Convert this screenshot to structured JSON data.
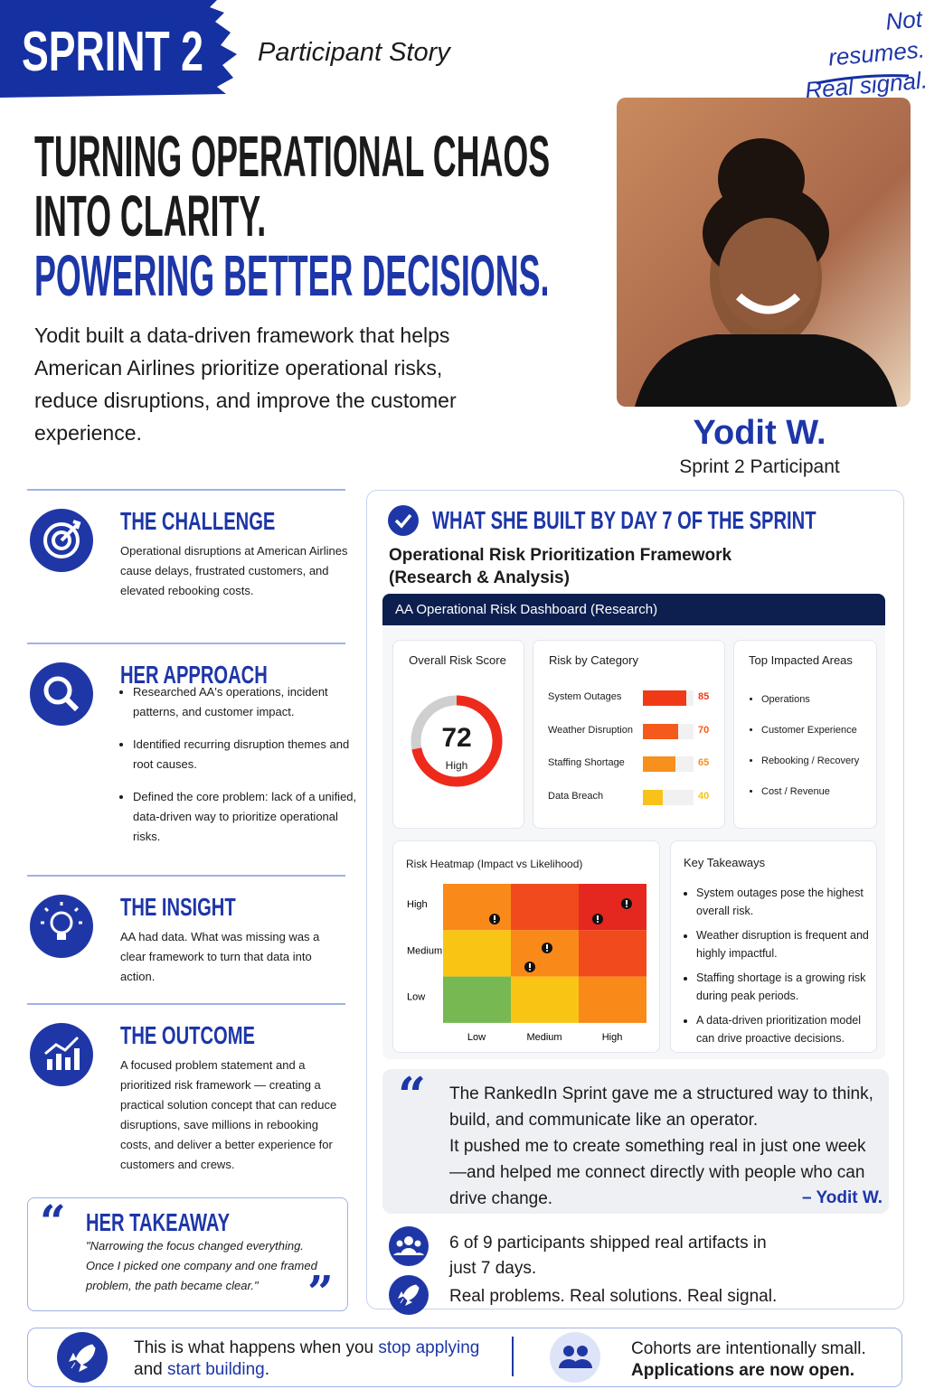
{
  "header": {
    "badge": "SPRINT 2",
    "subtitle": "Participant Story",
    "tagline": [
      "Not resumes.",
      "Real signal."
    ]
  },
  "hero": {
    "headline": [
      "TURNING OPERATIONAL CHAOS",
      "INTO CLARITY."
    ],
    "headline_accent": "POWERING BETTER DECISIONS.",
    "summary": "Yodit built a data-driven framework that helps American Airlines prioritize operational risks, reduce disruptions, and improve the customer experience.",
    "name": "Yodit W.",
    "role": "Sprint 2 Participant"
  },
  "sections": [
    {
      "title": "THE CHALLENGE",
      "body": "Operational disruptions at American Airlines cause delays, frustrated customers, and elevated rebooking costs."
    },
    {
      "title": "HER APPROACH",
      "bullets": [
        "Researched AA's operations, incident patterns, and customer impact.",
        "Identified recurring disruption themes and root causes.",
        "Defined the core problem: lack of a unified, data-driven way to prioritize operational risks."
      ]
    },
    {
      "title": "THE INSIGHT",
      "body": "AA had data. What was missing was a clear framework to turn that data into action."
    },
    {
      "title": "THE OUTCOME",
      "body": "A focused problem statement and a prioritized risk framework — creating a practical solution concept that can reduce disruptions, save millions in rebooking costs, and deliver a better experience for customers and crews."
    }
  ],
  "takeaway": {
    "open_mark": "“",
    "title": "HER TAKEAWAY",
    "quote": "\"Narrowing the focus changed everything. Once I picked one company and one framed problem, the path became clear.\"",
    "close_mark": "”"
  },
  "build": {
    "title": "WHAT SHE BUILT BY DAY 7 OF THE SPRINT",
    "subtitle": "Operational Risk Prioritization Framework (Research & Analysis)",
    "dashboard": {
      "title": "AA Operational Risk Dashboard (Research)",
      "score": {
        "title": "Overall Risk Score",
        "value": 72,
        "label": "High",
        "color": "#ee2a1b"
      },
      "categories": {
        "title": "Risk by Category",
        "items": [
          {
            "name": "System Outages",
            "value": 85,
            "color": "#f03a17"
          },
          {
            "name": "Weather Disruption",
            "value": 70,
            "color": "#f45a1b"
          },
          {
            "name": "Staffing Shortage",
            "value": 65,
            "color": "#f7901c"
          },
          {
            "name": "Data Breach",
            "value": 40,
            "color": "#f8c21a"
          }
        ]
      },
      "areas": {
        "title": "Top Impacted Areas",
        "items": [
          "Operations",
          "Customer Experience",
          "Rebooking / Recovery",
          "Cost / Revenue"
        ]
      },
      "heatmap": {
        "title": "Risk Heatmap (Impact vs Likelihood)",
        "y_labels": [
          "High",
          "Medium",
          "Low"
        ],
        "x_labels": [
          "Low",
          "Medium",
          "High"
        ],
        "cells": [
          [
            "#f98a1a",
            "#f04a1d",
            "#e4281f"
          ],
          [
            "#f9c514",
            "#f98a1a",
            "#f04a1d"
          ],
          [
            "#77b852",
            "#f9c514",
            "#f98a1a"
          ]
        ]
      },
      "takeaways": {
        "title": "Key Takeaways",
        "items": [
          "System outages pose the highest overall risk.",
          "Weather disruption is frequent and highly impactful.",
          "Staffing shortage is a growing risk during peak periods.",
          "A data-driven prioritization model can drive proactive decisions."
        ]
      }
    }
  },
  "quote": {
    "mark": "“",
    "paragraphs": [
      "The RankedIn Sprint gave me a structured way to think, build, and communicate like an operator.",
      "It pushed me to create something real in just one week—and helped me connect directly with people who can drive change."
    ],
    "attribution": "– Yodit W."
  },
  "stats": [
    "6 of 9 participants shipped real artifacts in just 7 days.",
    "Real problems. Real solutions. Real signal."
  ],
  "footer": {
    "left": [
      "This is what happens when you",
      "stop applying",
      "and",
      "start building",
      "."
    ],
    "right": [
      "Cohorts are intentionally small.",
      "Applications are now open."
    ]
  }
}
